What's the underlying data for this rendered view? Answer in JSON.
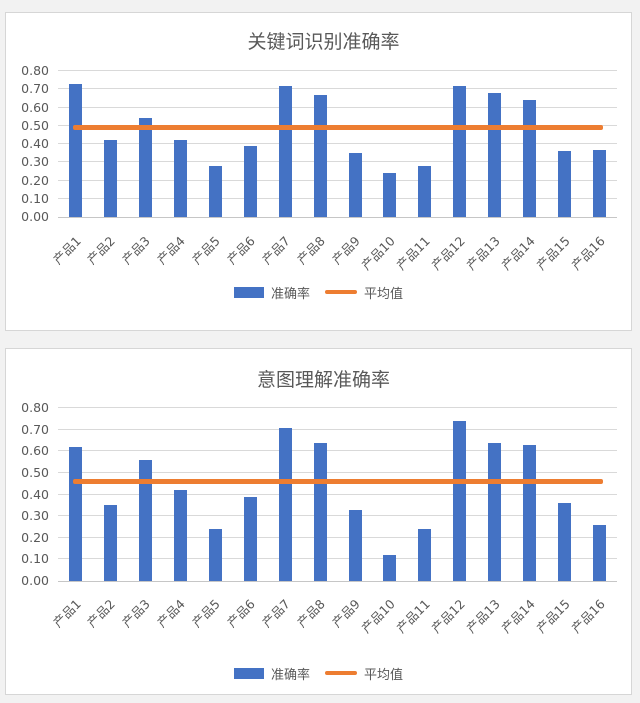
{
  "colors": {
    "bar": "#4472C4",
    "average_line": "#ED7D31",
    "gridline": "#D9D9D9",
    "axis_text": "#595959",
    "panel_background": "#FFFFFF",
    "page_background": "#F2F2F2"
  },
  "chart_data": [
    {
      "type": "bar",
      "title": "关键词识别准确率",
      "categories": [
        "产品1",
        "产品2",
        "产品3",
        "产品4",
        "产品5",
        "产品6",
        "产品7",
        "产品8",
        "产品9",
        "产品10",
        "产品11",
        "产品12",
        "产品13",
        "产品14",
        "产品15",
        "产品16"
      ],
      "series": [
        {
          "name": "准确率",
          "type": "bar",
          "color": "#4472C4",
          "values": [
            0.73,
            0.42,
            0.54,
            0.42,
            0.28,
            0.39,
            0.72,
            0.67,
            0.35,
            0.24,
            0.28,
            0.72,
            0.68,
            0.64,
            0.36,
            0.37
          ]
        },
        {
          "name": "平均值",
          "type": "line",
          "color": "#ED7D31",
          "value": 0.49
        }
      ],
      "ylim": [
        0,
        0.8
      ],
      "yticks": [
        "0.00",
        "0.10",
        "0.20",
        "0.30",
        "0.40",
        "0.50",
        "0.60",
        "0.70",
        "0.80"
      ],
      "grid": true,
      "legend_position": "bottom"
    },
    {
      "type": "bar",
      "title": "意图理解准确率",
      "categories": [
        "产品1",
        "产品2",
        "产品3",
        "产品4",
        "产品5",
        "产品6",
        "产品7",
        "产品8",
        "产品9",
        "产品10",
        "产品11",
        "产品12",
        "产品13",
        "产品14",
        "产品15",
        "产品16"
      ],
      "series": [
        {
          "name": "准确率",
          "type": "bar",
          "color": "#4472C4",
          "values": [
            0.62,
            0.35,
            0.56,
            0.42,
            0.24,
            0.39,
            0.71,
            0.64,
            0.33,
            0.12,
            0.24,
            0.74,
            0.64,
            0.63,
            0.36,
            0.26
          ]
        },
        {
          "name": "平均值",
          "type": "line",
          "color": "#ED7D31",
          "value": 0.46
        }
      ],
      "ylim": [
        0,
        0.8
      ],
      "yticks": [
        "0.00",
        "0.10",
        "0.20",
        "0.30",
        "0.40",
        "0.50",
        "0.60",
        "0.70",
        "0.80"
      ],
      "grid": true,
      "legend_position": "bottom"
    }
  ]
}
